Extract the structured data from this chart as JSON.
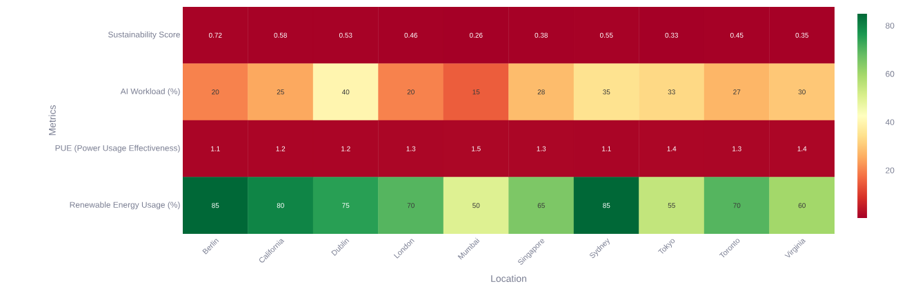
{
  "chart_data": {
    "type": "heatmap",
    "xlabel": "Location",
    "ylabel": "Metrics",
    "categories": [
      "Berlin",
      "California",
      "Dublin",
      "London",
      "Mumbai",
      "Singapore",
      "Sydney",
      "Tokyo",
      "Toronto",
      "Virginia"
    ],
    "y_categories": [
      "Sustainability Score",
      "AI Workload (%)",
      "PUE (Power Usage Effectiveness)",
      "Renewable Energy Usage (%)"
    ],
    "cells": [
      [
        0.72,
        0.58,
        0.53,
        0.46,
        0.26,
        0.38,
        0.55,
        0.33,
        0.45,
        0.35
      ],
      [
        20,
        25,
        40,
        20,
        15,
        28,
        35,
        33,
        27,
        30
      ],
      [
        1.1,
        1.2,
        1.2,
        1.3,
        1.5,
        1.3,
        1.1,
        1.4,
        1.3,
        1.4
      ],
      [
        85,
        80,
        75,
        70,
        50,
        65,
        85,
        55,
        70,
        60
      ]
    ],
    "clim": [
      0.26,
      85
    ],
    "cticks": [
      20,
      40,
      60,
      80
    ],
    "data_labels": true
  }
}
